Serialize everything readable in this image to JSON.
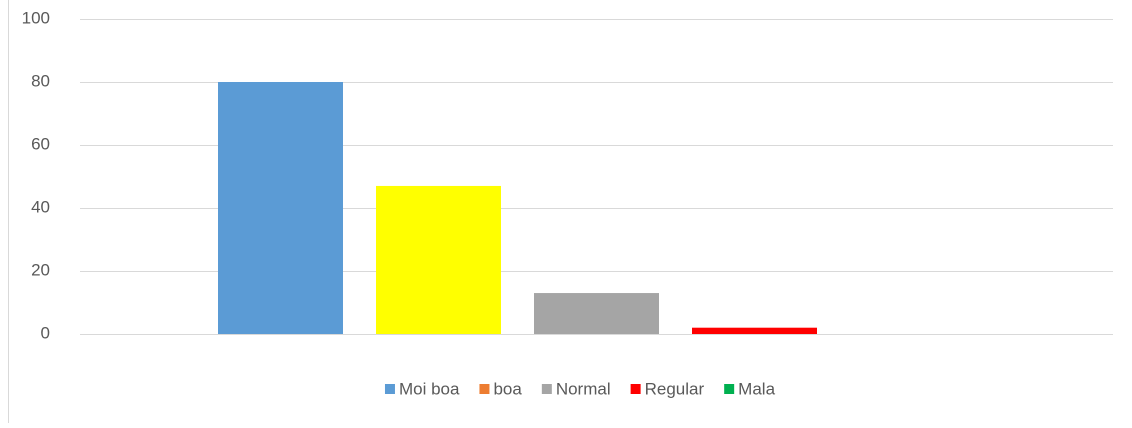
{
  "chart_data": {
    "type": "bar",
    "series": [
      {
        "name": "Moi boa",
        "color": "#5b9bd5",
        "values": [
          80
        ]
      },
      {
        "name": "boa",
        "color": "#ed7d31",
        "bar_color": "#ffff00",
        "values": [
          47
        ]
      },
      {
        "name": "Normal",
        "color": "#a5a5a5",
        "values": [
          13
        ]
      },
      {
        "name": "Regular",
        "color": "#ff0000",
        "values": [
          2
        ]
      },
      {
        "name": "Mala",
        "color": "#00b050",
        "values": [
          0
        ]
      }
    ],
    "ylim": [
      0,
      100
    ],
    "yticks": [
      0,
      20,
      40,
      60,
      80,
      100
    ],
    "grid": true,
    "legend": "bottom"
  }
}
